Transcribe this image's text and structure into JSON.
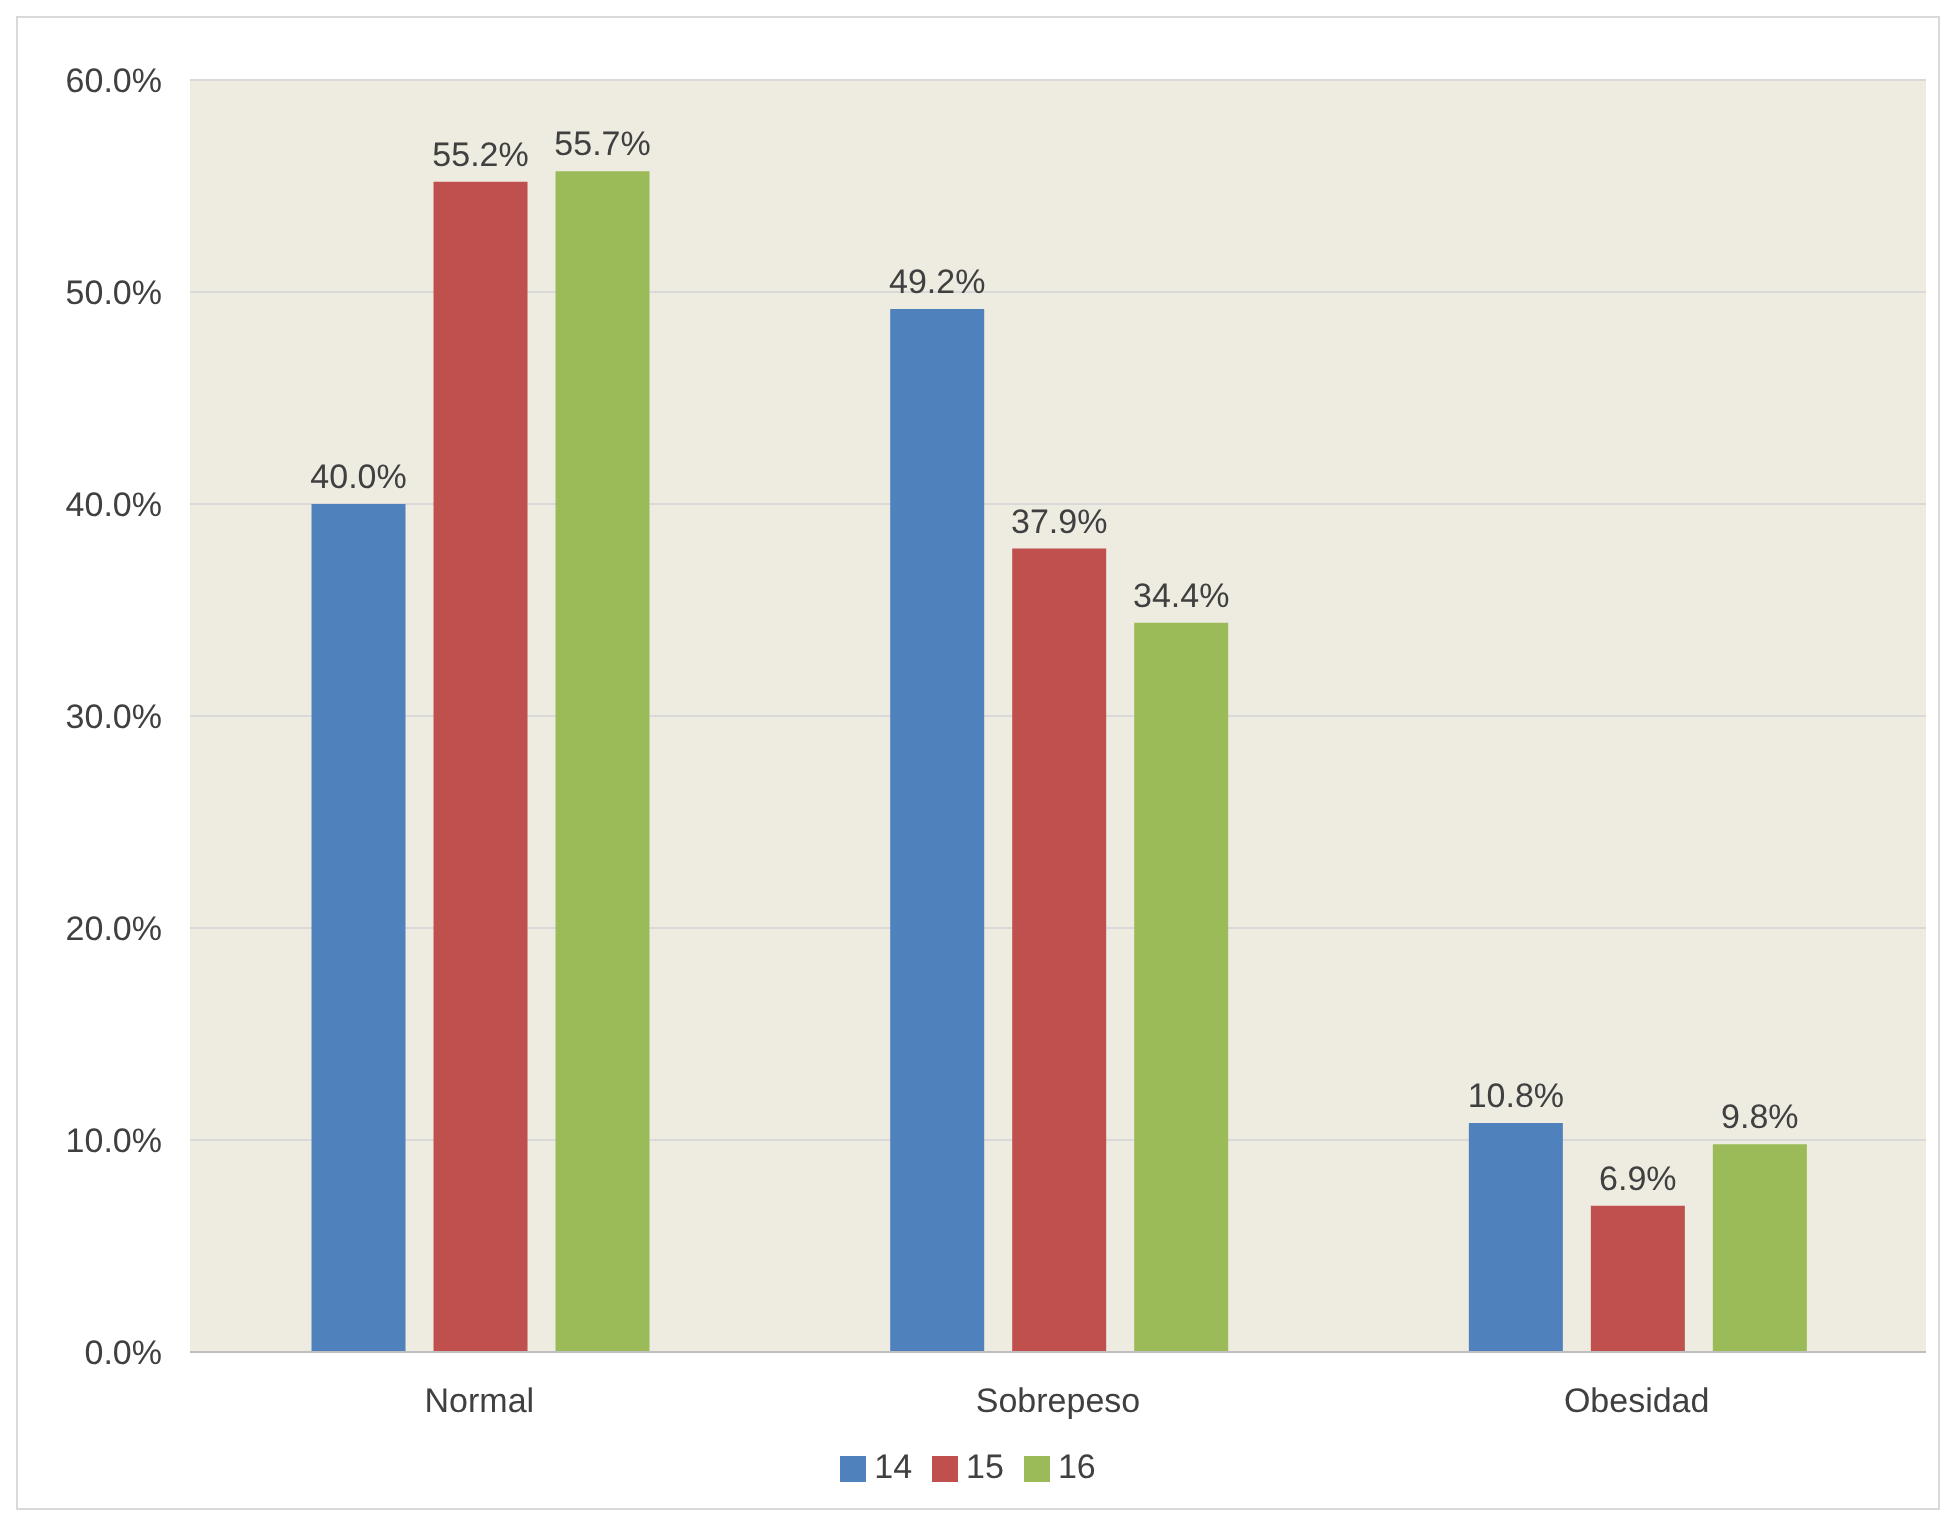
{
  "chart_data": {
    "type": "bar",
    "categories": [
      "Normal",
      "Sobrepeso",
      "Obesidad"
    ],
    "series": [
      {
        "name": "14",
        "color": "#4f81bd",
        "values": [
          40.0,
          49.2,
          10.8
        ],
        "value_labels": [
          "40.0%",
          "49.2%",
          "10.8%"
        ]
      },
      {
        "name": "15",
        "color": "#c0504d",
        "values": [
          55.2,
          37.9,
          6.9
        ],
        "value_labels": [
          "55.2%",
          "37.9%",
          "6.9%"
        ]
      },
      {
        "name": "16",
        "color": "#9bbb59",
        "values": [
          55.7,
          34.4,
          9.8
        ],
        "value_labels": [
          "55.7%",
          "34.4%",
          "9.8%"
        ]
      }
    ],
    "ylim": [
      0,
      60
    ],
    "yticks": [
      {
        "value": 0,
        "label": "0.0%"
      },
      {
        "value": 10,
        "label": "10.0%"
      },
      {
        "value": 20,
        "label": "20.0%"
      },
      {
        "value": 30,
        "label": "30.0%"
      },
      {
        "value": 40,
        "label": "40.0%"
      },
      {
        "value": 50,
        "label": "50.0%"
      },
      {
        "value": 60,
        "label": "60.0%"
      }
    ],
    "grid": "y",
    "legend": "bottom"
  }
}
